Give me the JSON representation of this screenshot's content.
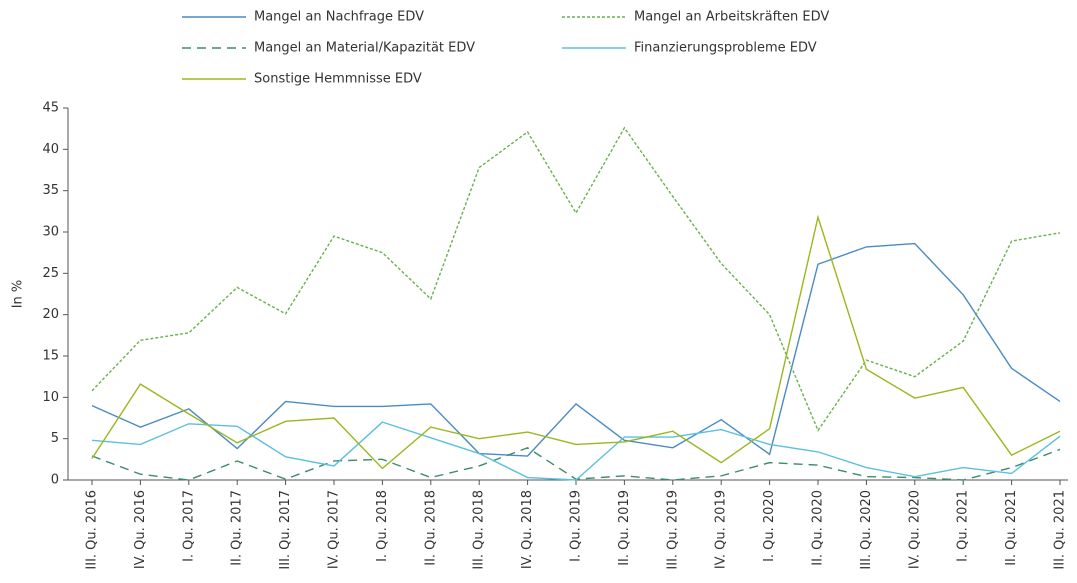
{
  "chart_data": {
    "type": "line",
    "y_label": "In %",
    "categories": [
      "III. Qu. 2016",
      "IV. Qu. 2016",
      "I. Qu. 2017",
      "II. Qu. 2017",
      "III. Qu. 2017",
      "IV. Qu. 2017",
      "I. Qu. 2018",
      "II. Qu. 2018",
      "III. Qu. 2018",
      "IV. Qu. 2018",
      "I. Qu. 2019",
      "II. Qu. 2019",
      "III. Qu. 2019",
      "IV. Qu. 2019",
      "I. Qu. 2020",
      "II. Qu. 2020",
      "III. Qu. 2020",
      "IV. Qu. 2020",
      "I. Qu. 2021",
      "II. Qu. 2021",
      "III. Qu. 2021"
    ],
    "series": [
      {
        "name": "Mangel an Nachfrage EDV",
        "color": "#4a8ac4",
        "dash": "none",
        "values": [
          9,
          6.4,
          8.6,
          3.8,
          9.5,
          8.9,
          8.9,
          9.2,
          3.2,
          2.9,
          9.2,
          4.8,
          3.9,
          7.3,
          3.1,
          26.1,
          28.2,
          28.6,
          22.4,
          13.5,
          9.5
        ]
      },
      {
        "name": "Mangel an Arbeitskräften EDV",
        "color": "#6ab04c",
        "dash": "3 2",
        "values": [
          10.8,
          16.9,
          17.8,
          23.3,
          20.1,
          29.5,
          27.5,
          21.9,
          37.8,
          42.1,
          32.3,
          42.6,
          34.3,
          26.2,
          20.0,
          6.0,
          14.5,
          12.5,
          16.8,
          28.9,
          29.9
        ]
      },
      {
        "name": "Mangel an Material/Kapazität EDV",
        "color": "#3d8c6e",
        "dash": "9 6",
        "values": [
          2.9,
          0.7,
          0,
          2.3,
          0.1,
          2.3,
          2.5,
          0.3,
          1.7,
          3.9,
          0.1,
          0.5,
          0,
          0.5,
          2.1,
          1.8,
          0.4,
          0.3,
          0,
          1.5,
          3.7
        ]
      },
      {
        "name": "Finanzierungsprobleme EDV",
        "color": "#5bc0de",
        "dash": "none",
        "values": [
          4.8,
          4.3,
          6.8,
          6.5,
          2.8,
          1.7,
          7.0,
          5.1,
          3.2,
          0.3,
          0,
          5.2,
          5.2,
          6.1,
          4.3,
          3.4,
          1.5,
          0.4,
          1.5,
          0.8,
          5.3
        ]
      },
      {
        "name": "Sonstige Hemmnisse EDV",
        "color": "#9ab81e",
        "dash": "none",
        "values": [
          2.6,
          11.6,
          8.0,
          4.5,
          7.1,
          7.5,
          1.4,
          6.4,
          5.0,
          5.8,
          4.3,
          4.6,
          5.9,
          2.1,
          6.2,
          31.8,
          13.4,
          9.9,
          11.2,
          3.0,
          5.9
        ]
      }
    ],
    "ylim": [
      0,
      45
    ],
    "yticks": [
      0,
      5,
      10,
      15,
      20,
      25,
      30,
      35,
      40,
      45
    ],
    "grid": false
  }
}
